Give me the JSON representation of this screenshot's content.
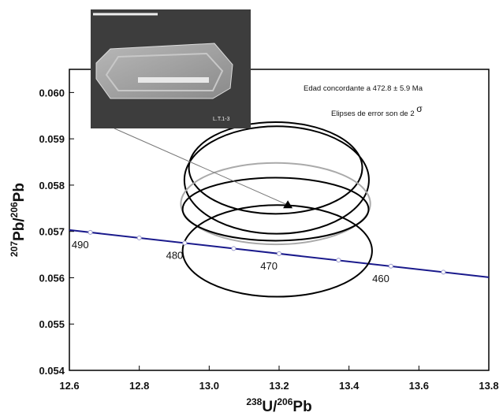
{
  "chart_data": {
    "type": "concordia",
    "xlim": [
      12.6,
      13.8
    ],
    "ylim": [
      0.054,
      0.0605
    ],
    "xticks": [
      {
        "value": 12.6,
        "label": "12.6"
      },
      {
        "value": 12.8,
        "label": "12.8"
      },
      {
        "value": 13,
        "label": "13.0"
      },
      {
        "value": 13.2,
        "label": "13.2"
      },
      {
        "value": 13.4,
        "label": "13.4"
      },
      {
        "value": 13.6,
        "label": "13.6"
      },
      {
        "value": 13.8,
        "label": "13.8"
      }
    ],
    "yticks": [
      0.054,
      0.055,
      0.056,
      0.057,
      0.058,
      0.059,
      {
        "value": 0.06,
        "label": "0.060"
      }
    ],
    "xlabel_parts": [
      {
        "text": "238",
        "sup": true
      },
      {
        "text": "U/",
        "sup": false
      },
      {
        "text": "206",
        "sup": true
      },
      {
        "text": "Pb",
        "sup": false
      }
    ],
    "ylabel_parts": [
      {
        "text": "207",
        "sup": true
      },
      {
        "text": "Pb/",
        "sup": false
      },
      {
        "text": "206",
        "sup": true
      },
      {
        "text": "Pb",
        "sup": false
      }
    ],
    "annotations": [
      "Edad concordante a 472.8 ± 5.9 Ma",
      "Elipses de error son de 2 ",
      "σ"
    ],
    "inset_label": "L.T.1-3",
    "concordia": {
      "color": "#1a1a8c",
      "line_x": [
        12.6,
        13.8
      ],
      "line_y": [
        0.05703,
        0.05601
      ],
      "x": [
        12.66,
        12.8,
        12.93,
        13.07,
        13.2,
        13.37,
        13.52,
        13.67
      ],
      "y": [
        0.05698,
        0.05686,
        0.05675,
        0.05663,
        0.05652,
        0.05638,
        0.05625,
        0.05612
      ],
      "point_labels": [
        "490",
        null,
        "480",
        null,
        "470",
        null,
        "460",
        null
      ]
    },
    "ellipses": [
      {
        "cx": 13.193,
        "cy": 0.05811,
        "rx": 0.264,
        "ry": 0.00116,
        "color": "#000000"
      },
      {
        "cx": 13.19,
        "cy": 0.05837,
        "rx": 0.248,
        "ry": 0.00099,
        "color": "#000000"
      },
      {
        "cx": 13.19,
        "cy": 0.0576,
        "rx": 0.271,
        "ry": 0.00088,
        "color": "#aaaaaa"
      },
      {
        "cx": 13.19,
        "cy": 0.05748,
        "rx": 0.266,
        "ry": 0.00068,
        "color": "#000000"
      },
      {
        "cx": 13.195,
        "cy": 0.05658,
        "rx": 0.271,
        "ry": 0.00099,
        "color": "#000000"
      }
    ],
    "mean": {
      "x": 13.225,
      "y": 0.05757
    }
  }
}
